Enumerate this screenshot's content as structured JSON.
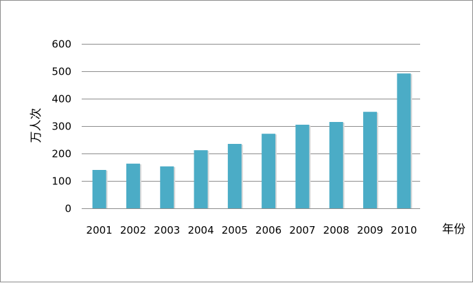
{
  "chart_data": {
    "type": "bar",
    "categories": [
      "2001",
      "2002",
      "2003",
      "2004",
      "2005",
      "2006",
      "2007",
      "2008",
      "2009",
      "2010"
    ],
    "values": [
      140,
      163,
      153,
      212,
      235,
      272,
      305,
      315,
      352,
      492
    ],
    "xlabel": "年份",
    "ylabel": "万人次",
    "ylim": [
      0,
      600
    ],
    "yticks": [
      "0",
      "100",
      "200",
      "300",
      "400",
      "500",
      "600"
    ],
    "grid": true,
    "legend": "none",
    "bar_color": "#4bacc6",
    "grid_color": "#8c8c8c"
  }
}
